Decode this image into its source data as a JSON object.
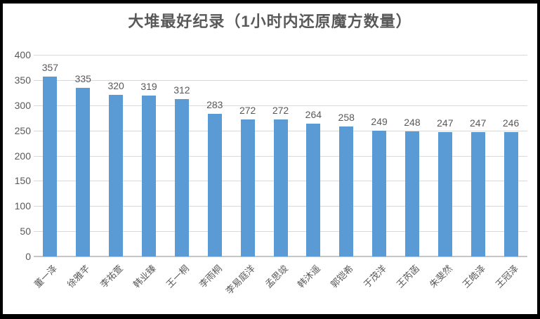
{
  "title": "大堆最好纪录（1小时内还原魔方数量）",
  "colors": {
    "bar": "#5b9bd5",
    "text": "#595959",
    "gridline": "#d9d9d9",
    "axis_line": "#c6c6c6",
    "frame_border": "#000000"
  },
  "chart_data": {
    "type": "bar",
    "title": "大堆最好纪录（1小时内还原魔方数量）",
    "categories": [
      "董一泽",
      "徐雅芊",
      "李祐萱",
      "韩业臻",
      "王一桐",
      "李雨桐",
      "李易庭洋",
      "孟思竣",
      "韩沐遥",
      "郭铠希",
      "于茂洋",
      "王芮菡",
      "朱斐然",
      "王皓泽",
      "王冠泽"
    ],
    "values": [
      357,
      335,
      320,
      319,
      312,
      283,
      272,
      272,
      264,
      258,
      249,
      248,
      247,
      247,
      246
    ],
    "data_labels": [
      "357",
      "335",
      "320",
      "319",
      "312",
      "283",
      "272",
      "272",
      "264",
      "258",
      "249",
      "248",
      "247",
      "247",
      "246"
    ],
    "xlabel": "",
    "ylabel": "",
    "ylim": [
      0,
      400
    ],
    "yticks": [
      0,
      50,
      100,
      150,
      200,
      250,
      300,
      350,
      400
    ],
    "grid": true,
    "legend": "none",
    "xtick_rotation": 45
  }
}
